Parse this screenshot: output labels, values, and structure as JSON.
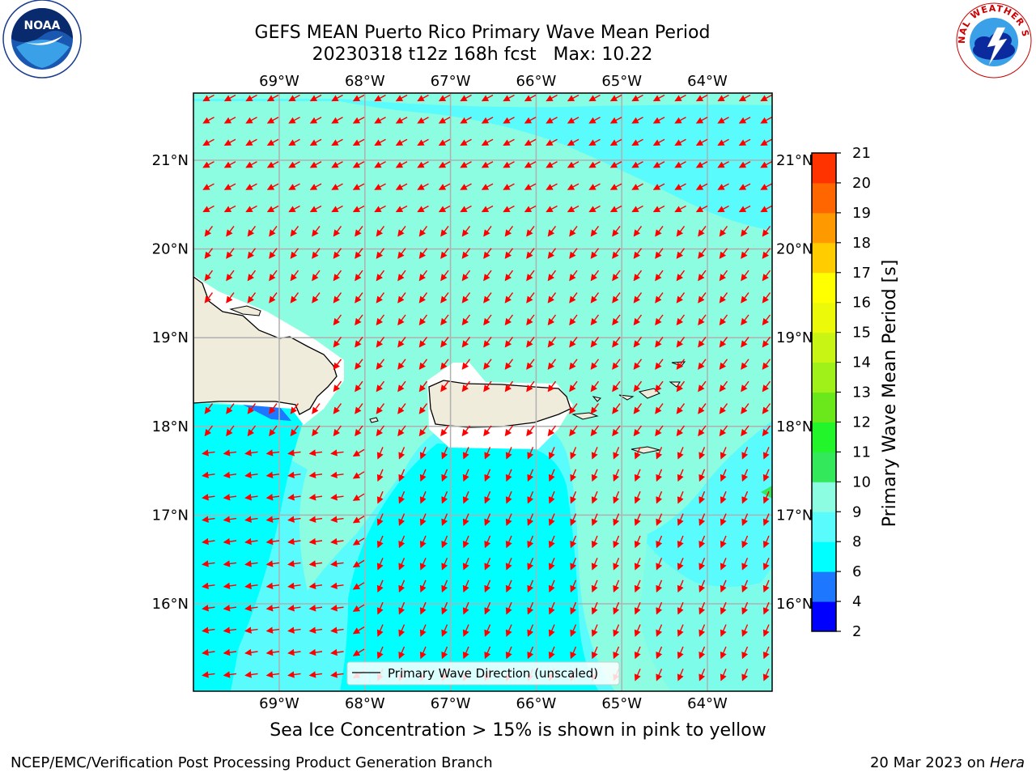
{
  "title": {
    "line1": "GEFS MEAN Puerto Rico Primary Wave Mean Period",
    "line2": "20230318 t12z 168h fcst   Max: 10.22"
  },
  "map": {
    "lon_ticks": [
      "69°W",
      "68°W",
      "67°W",
      "66°W",
      "65°W",
      "64°W"
    ],
    "lat_ticks": [
      "21°N",
      "20°N",
      "19°N",
      "18°N",
      "17°N",
      "16°N"
    ],
    "lon_values": [
      -69,
      -68,
      -67,
      -66,
      -65,
      -64
    ],
    "lat_values": [
      21,
      20,
      19,
      18,
      17,
      16
    ],
    "legend_label": "Primary Wave Direction (unscaled)",
    "arrow_color": "#ff0000",
    "land_color": "#efecdc",
    "ocean_colors": {
      "band_8_9": "#5afbfd",
      "band_9_10": "#8cfde0",
      "band_6_8": "#00ffff",
      "band_4_6": "#1e78ff"
    }
  },
  "colorbar": {
    "label": "Primary Wave Mean Period [s]",
    "ticks": [
      "2",
      "4",
      "6",
      "8",
      "9",
      "10",
      "11",
      "12",
      "13",
      "14",
      "15",
      "16",
      "17",
      "18",
      "19",
      "20",
      "21"
    ],
    "colors": [
      "#0000ff",
      "#1e78ff",
      "#00ffff",
      "#5afbfd",
      "#8cfde0",
      "#33e85a",
      "#22f52a",
      "#6be81c",
      "#a0f01a",
      "#c9f515",
      "#ecfa0a",
      "#ffff00",
      "#ffcc00",
      "#ff9900",
      "#ff6600",
      "#ff3300",
      "#ff0000"
    ]
  },
  "sea_ice_note": "Sea Ice Concentration > 15% is shown in pink to yellow",
  "footer": {
    "left": "NCEP/EMC/Verification Post Processing Product Generation Branch",
    "right_prefix": "20 Mar 2023 on ",
    "right_host": "Hera"
  },
  "logos": {
    "noaa": "NOAA",
    "nws": "NATIONAL WEATHER SERVICE"
  }
}
